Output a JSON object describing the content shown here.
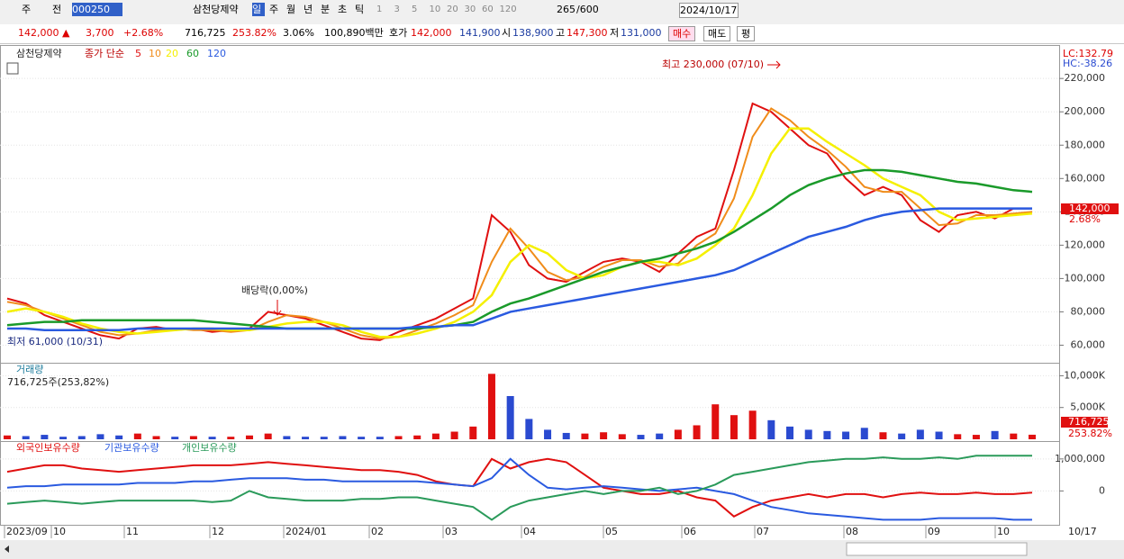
{
  "toolbar": {
    "market": "주",
    "prev": "전",
    "code": "000250",
    "name": "삼천당제약",
    "periods": [
      "일",
      "주",
      "월",
      "년",
      "분",
      "초",
      "틱"
    ],
    "intervals": [
      "1",
      "3",
      "5",
      "10",
      "20",
      "30",
      "60",
      "120"
    ],
    "count": "265",
    "total": "/600",
    "date": "2024/10/17"
  },
  "quote_bar": {
    "price": "142,000 ▲",
    "change": "3,700",
    "change_pct": "+2.68%",
    "volume": "716,725",
    "volume_ratio": "253.82%",
    "turnover": "3.06%",
    "amount": "100,890백만",
    "bid_label": "호가",
    "ask": "142,000",
    "bid": "141,900",
    "open_label": "시",
    "open": "138,900",
    "high_label": "고",
    "high": "147,300",
    "low_label": "저",
    "low": "131,000",
    "buy": "매수",
    "sell": "매도",
    "avg": "평"
  },
  "price_chart": {
    "type": "line",
    "legend_name": "삼천당제약",
    "legend_label": "종가 단순",
    "series": [
      {
        "name": "5",
        "color": "#e01010",
        "values": [
          88000,
          85000,
          78000,
          74000,
          70000,
          66000,
          64000,
          70000,
          71000,
          69000,
          70000,
          68000,
          69000,
          70000,
          80000,
          78000,
          76000,
          72000,
          68000,
          64000,
          63000,
          68000,
          72000,
          76000,
          82000,
          88000,
          138000,
          128000,
          108000,
          100000,
          98000,
          104000,
          110000,
          112000,
          110000,
          104000,
          115000,
          125000,
          130000,
          165000,
          205000,
          200000,
          190000,
          180000,
          175000,
          160000,
          150000,
          155000,
          150000,
          135000,
          128000,
          138000,
          140000,
          136000,
          142000,
          142000
        ]
      },
      {
        "name": "10",
        "color": "#f08c1a",
        "values": [
          86000,
          84000,
          80000,
          76000,
          72000,
          68000,
          66000,
          67000,
          69000,
          70000,
          69000,
          69000,
          68000,
          69000,
          74000,
          78000,
          77000,
          74000,
          70000,
          66000,
          64000,
          65000,
          69000,
          73000,
          78000,
          84000,
          110000,
          130000,
          118000,
          104000,
          99000,
          101000,
          107000,
          111000,
          111000,
          107000,
          109000,
          120000,
          127000,
          148000,
          185000,
          202000,
          195000,
          185000,
          177000,
          167000,
          155000,
          152000,
          152000,
          142000,
          132000,
          133000,
          138000,
          138000,
          139000,
          140000
        ]
      },
      {
        "name": "20",
        "color": "#f5f000",
        "values": [
          80000,
          82000,
          80000,
          77000,
          73000,
          70000,
          68000,
          67000,
          68000,
          69000,
          70000,
          70000,
          69000,
          69000,
          71000,
          73000,
          74000,
          74000,
          72000,
          68000,
          65000,
          65000,
          67000,
          70000,
          74000,
          80000,
          90000,
          110000,
          120000,
          115000,
          105000,
          100000,
          102000,
          107000,
          110000,
          110000,
          108000,
          112000,
          120000,
          130000,
          150000,
          175000,
          190000,
          190000,
          182000,
          175000,
          168000,
          160000,
          155000,
          150000,
          140000,
          135000,
          136000,
          137000,
          138000,
          139000
        ]
      },
      {
        "name": "60",
        "color": "#1a9a2a",
        "values": [
          72000,
          73000,
          74000,
          74000,
          75000,
          75000,
          75000,
          75000,
          75000,
          75000,
          75000,
          74000,
          73000,
          72000,
          71000,
          70000,
          70000,
          70000,
          70000,
          70000,
          70000,
          70000,
          70000,
          71000,
          72000,
          74000,
          80000,
          85000,
          88000,
          92000,
          96000,
          100000,
          104000,
          107000,
          110000,
          112000,
          115000,
          118000,
          122000,
          128000,
          135000,
          142000,
          150000,
          156000,
          160000,
          163000,
          165000,
          165000,
          164000,
          162000,
          160000,
          158000,
          157000,
          155000,
          153000,
          152000
        ]
      },
      {
        "name": "120",
        "color": "#2a5ae0",
        "values": [
          70000,
          70000,
          69000,
          69000,
          69000,
          69000,
          69000,
          70000,
          70000,
          70000,
          70000,
          70000,
          70000,
          70000,
          70000,
          70000,
          70000,
          70000,
          70000,
          70000,
          70000,
          70000,
          71000,
          71000,
          72000,
          72000,
          76000,
          80000,
          82000,
          84000,
          86000,
          88000,
          90000,
          92000,
          94000,
          96000,
          98000,
          100000,
          102000,
          105000,
          110000,
          115000,
          120000,
          125000,
          128000,
          131000,
          135000,
          138000,
          140000,
          141000,
          142000,
          142000,
          142000,
          142000,
          142000,
          142000
        ]
      }
    ],
    "ylim": [
      50000,
      239000
    ],
    "yticks": [
      {
        "value": 60000,
        "label": "60,000"
      },
      {
        "value": 80000,
        "label": "80,000"
      },
      {
        "value": 100000,
        "label": "100,000"
      },
      {
        "value": 120000,
        "label": "120,000"
      },
      {
        "value": 140000,
        "label": "140,000"
      },
      {
        "value": 160000,
        "label": "160,000"
      },
      {
        "value": 180000,
        "label": "180,000"
      },
      {
        "value": 200000,
        "label": "200,000"
      },
      {
        "value": 220000,
        "label": "220,000"
      }
    ],
    "annotations": {
      "high": "최고 230,000 (07/10)",
      "low": "최저 61,000 (10/31)",
      "dividend": "배당락(0,00%)",
      "lc": "LC:132.79",
      "hc": "HC:-38.26",
      "last": "142,000",
      "last_pct": "2.68%"
    }
  },
  "volume_chart": {
    "type": "bar",
    "title": "거래량",
    "summary": "716,725주(253,82%)",
    "values": [
      600000,
      500000,
      700000,
      400000,
      500000,
      800000,
      600000,
      900000,
      500000,
      400000,
      500000,
      400000,
      400000,
      600000,
      900000,
      500000,
      400000,
      400000,
      500000,
      400000,
      400000,
      500000,
      600000,
      900000,
      1200000,
      2000000,
      10300000,
      6800000,
      3200000,
      1500000,
      1000000,
      900000,
      1100000,
      800000,
      700000,
      900000,
      1500000,
      2200000,
      5500000,
      3800000,
      4500000,
      3000000,
      2000000,
      1500000,
      1300000,
      1200000,
      1800000,
      1100000,
      900000,
      1500000,
      1200000,
      800000,
      700000,
      1300000,
      900000,
      716725
    ],
    "ylim": [
      0,
      11900000
    ],
    "yticks": [
      {
        "value": 5000000,
        "label": "5,000K"
      },
      {
        "value": 10000000,
        "label": "10,000K"
      }
    ],
    "last": "716,725",
    "last_pct": "253.82%"
  },
  "holdings_chart": {
    "type": "line",
    "series": [
      {
        "name": "외국인보유수량",
        "color": "#e01010",
        "values": [
          600000,
          700000,
          800000,
          800000,
          700000,
          650000,
          600000,
          650000,
          700000,
          750000,
          800000,
          800000,
          800000,
          850000,
          900000,
          850000,
          800000,
          750000,
          700000,
          650000,
          650000,
          600000,
          500000,
          300000,
          200000,
          150000,
          1000000,
          700000,
          900000,
          1000000,
          900000,
          500000,
          100000,
          0,
          -100000,
          -100000,
          0,
          -200000,
          -300000,
          -800000,
          -500000,
          -300000,
          -200000,
          -100000,
          -200000,
          -100000,
          -100000,
          -200000,
          -100000,
          -50000,
          -100000,
          -100000,
          -50000,
          -100000,
          -100000,
          -50000
        ]
      },
      {
        "name": "기관보유수량",
        "color": "#2a5ae0",
        "values": [
          100000,
          150000,
          150000,
          200000,
          200000,
          200000,
          200000,
          250000,
          250000,
          250000,
          300000,
          300000,
          350000,
          400000,
          400000,
          400000,
          350000,
          350000,
          300000,
          300000,
          300000,
          300000,
          300000,
          250000,
          200000,
          150000,
          400000,
          1000000,
          500000,
          100000,
          50000,
          100000,
          150000,
          100000,
          50000,
          0,
          50000,
          100000,
          0,
          -100000,
          -300000,
          -500000,
          -600000,
          -700000,
          -750000,
          -800000,
          -850000,
          -900000,
          -900000,
          -900000,
          -850000,
          -850000,
          -850000,
          -850000,
          -900000,
          -900000
        ]
      },
      {
        "name": "개인보유수량",
        "color": "#2a9a5a",
        "values": [
          -400000,
          -350000,
          -300000,
          -350000,
          -400000,
          -350000,
          -300000,
          -300000,
          -300000,
          -300000,
          -300000,
          -350000,
          -300000,
          0,
          -200000,
          -250000,
          -300000,
          -300000,
          -300000,
          -250000,
          -250000,
          -200000,
          -200000,
          -300000,
          -400000,
          -500000,
          -900000,
          -500000,
          -300000,
          -200000,
          -100000,
          0,
          -100000,
          0,
          0,
          100000,
          -100000,
          0,
          200000,
          500000,
          600000,
          700000,
          800000,
          900000,
          950000,
          1000000,
          1000000,
          1050000,
          1000000,
          1000000,
          1050000,
          1000000,
          1100000,
          1100000,
          1100000,
          1100000
        ]
      }
    ],
    "ylim": [
      -1030000,
      1530000
    ],
    "yticks": [
      {
        "value": 0,
        "label": "0"
      },
      {
        "value": 1000000,
        "label": "1,000,000"
      }
    ]
  },
  "date_axis": {
    "labels": [
      "2023/09",
      "10",
      "11",
      "12",
      "2024/01",
      "02",
      "03",
      "04",
      "05",
      "06",
      "07",
      "08",
      "09",
      "10"
    ],
    "last": "10/17"
  }
}
